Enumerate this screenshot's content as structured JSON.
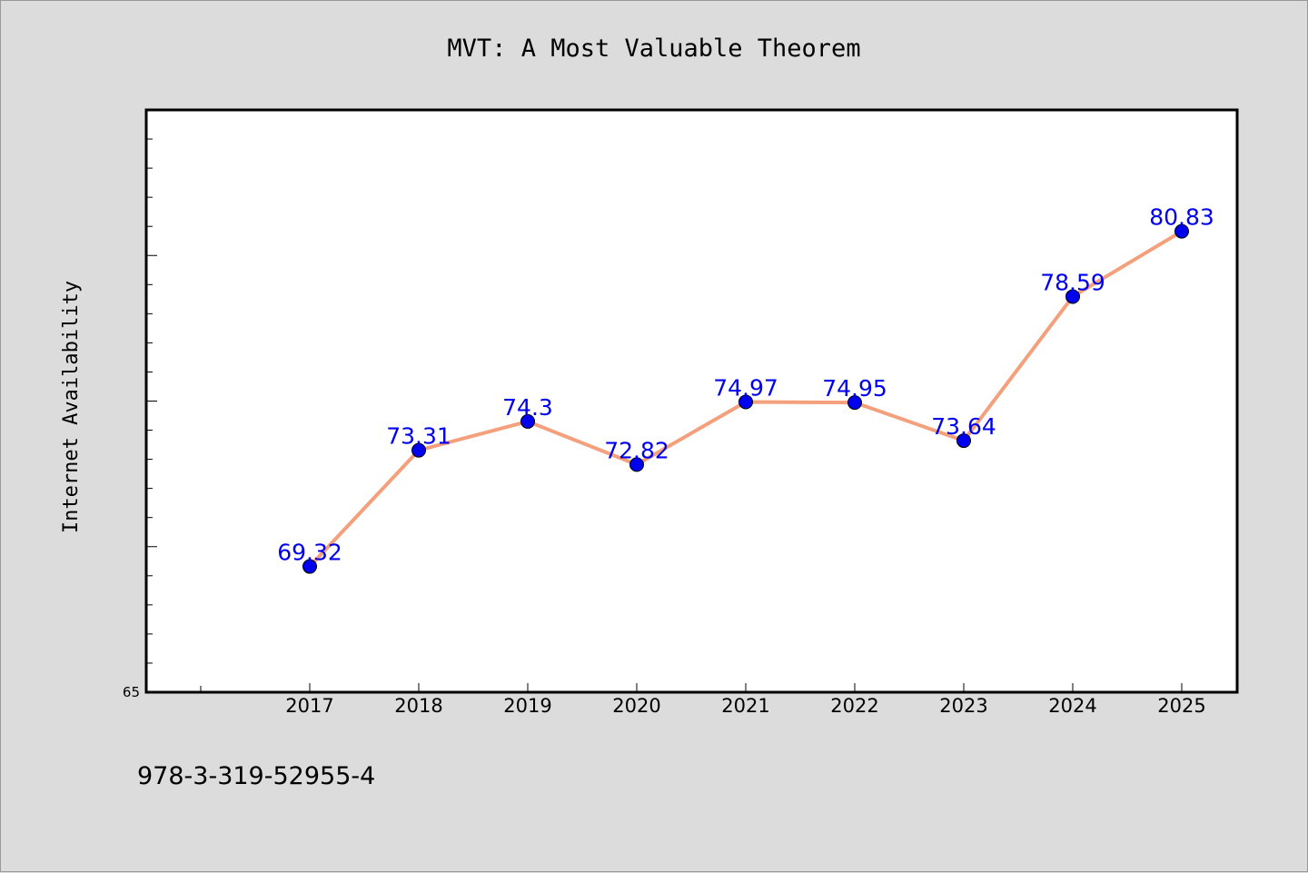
{
  "chart_data": {
    "type": "line",
    "title": "MVT: A Most Valuable Theorem",
    "xlabel": "",
    "ylabel": "Internet Availability",
    "categories": [
      "2017",
      "2018",
      "2019",
      "2020",
      "2021",
      "2022",
      "2023",
      "2024",
      "2025"
    ],
    "series": [
      {
        "values": [
          69.32,
          73.31,
          74.3,
          72.82,
          74.97,
          74.95,
          73.64,
          78.59,
          80.83
        ],
        "labels": [
          "69.32",
          "73.31",
          "74.3",
          "72.82",
          "74.97",
          "74.95",
          "73.64",
          "78.59",
          "80.83"
        ],
        "line_color": "#f4a07c",
        "marker_color": "#0000ee",
        "label_color": "#0000ee"
      }
    ],
    "y_tick_labels": [
      "65"
    ],
    "ylim": [
      65,
      85
    ],
    "grid": false,
    "legend": "none",
    "frame_color": "#000000",
    "plot_background": "#ffffff",
    "figure_background": "#dcdcdc"
  },
  "footer": {
    "isbn": "978-3-319-52955-4"
  }
}
